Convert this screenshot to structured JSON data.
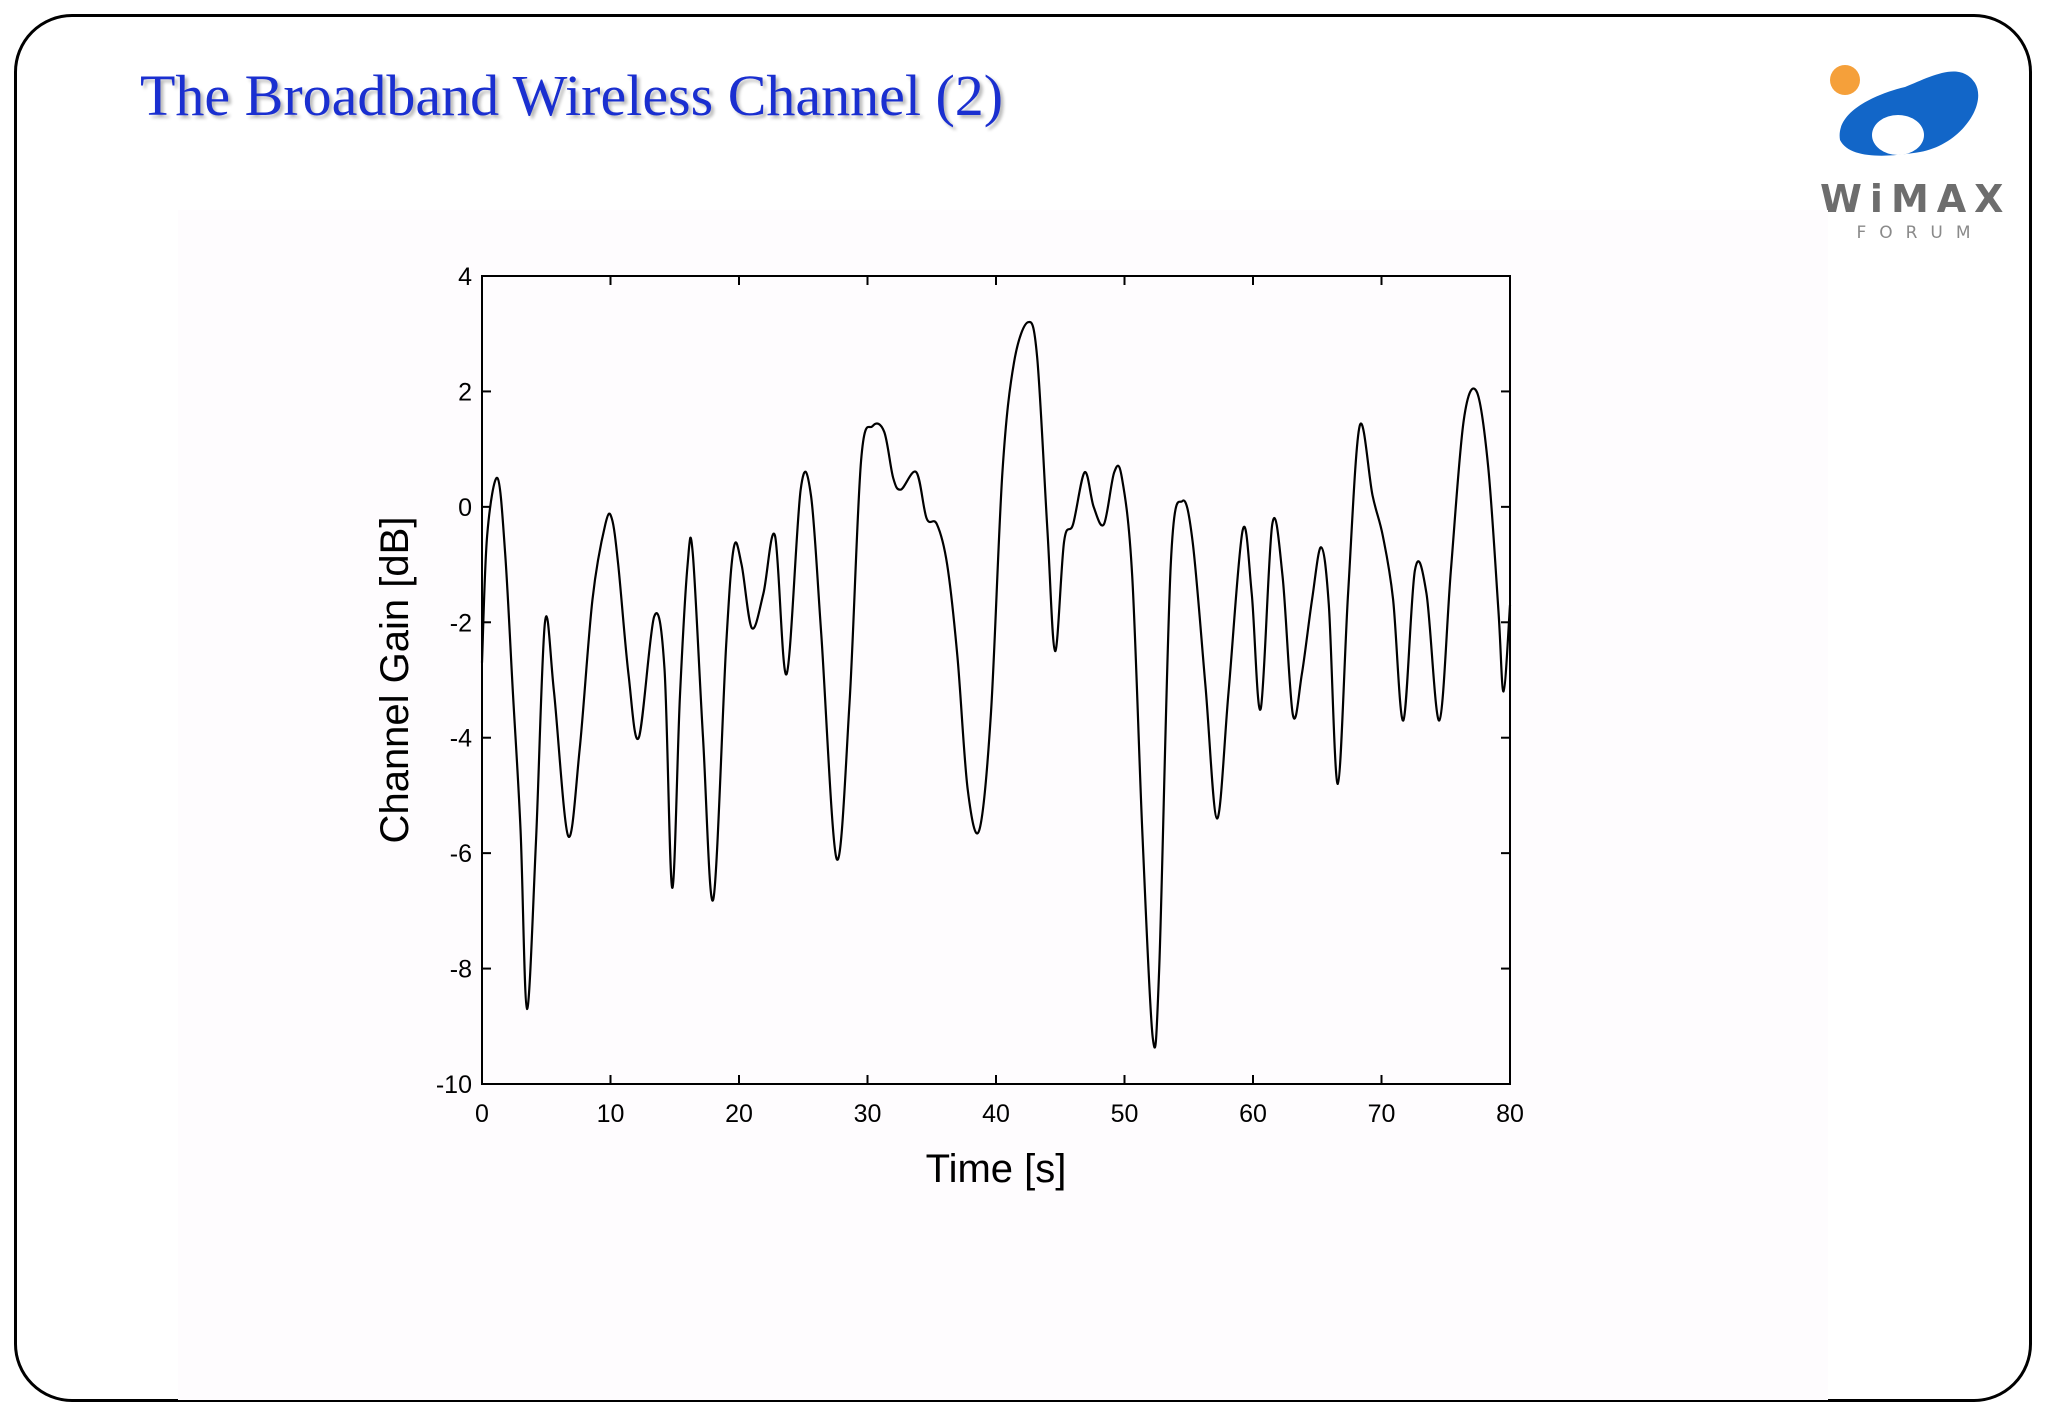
{
  "slide": {
    "title": "The Broadband Wireless Channel (2)"
  },
  "logo": {
    "word": "WiMAX",
    "sub": "FORUM",
    "colors": {
      "orange": "#f5a03a",
      "blue": "#1266c8",
      "gray": "#6d6d6d"
    }
  },
  "colors": {
    "title": "#1a2fd0",
    "line": "#000000",
    "frame": "#000000"
  },
  "chart_data": {
    "type": "line",
    "title": "",
    "xlabel": "Time [s]",
    "ylabel": "Channel Gain [dB]",
    "xlim": [
      0,
      80
    ],
    "ylim": [
      -10,
      4
    ],
    "xticks": [
      0,
      10,
      20,
      30,
      40,
      50,
      60,
      70,
      80
    ],
    "yticks": [
      -10,
      -8,
      -6,
      -4,
      -2,
      0,
      2,
      4
    ],
    "grid": false,
    "legend": "none",
    "series": [
      {
        "x": [
          0,
          0.4,
          1.2,
          1.8,
          2.4,
          3.0,
          3.5,
          4.2,
          4.9,
          5.6,
          6.7,
          7.6,
          8.6,
          9.6,
          10.1,
          10.6,
          11.4,
          12.2,
          13.4,
          14.2,
          14.8,
          15.4,
          16.0,
          16.4,
          17.2,
          18.0,
          19.0,
          19.6,
          20.2,
          21.0,
          21.9,
          22.8,
          23.7,
          24.8,
          25.6,
          26.4,
          27.6,
          28.6,
          29.5,
          30.4,
          31.3,
          32.0,
          32.6,
          33.8,
          34.6,
          35.4,
          36.2,
          37.0,
          37.8,
          38.7,
          39.6,
          40.5,
          41.4,
          42.5,
          43.2,
          44.0,
          44.6,
          45.3,
          46.0,
          46.9,
          47.6,
          48.4,
          49.2,
          49.8,
          50.6,
          51.4,
          52.2,
          52.7,
          53.6,
          54.5,
          55.3,
          56.3,
          57.2,
          58.1,
          59.2,
          59.9,
          60.6,
          61.5,
          62.3,
          63.1,
          63.8,
          64.6,
          65.3,
          65.9,
          66.6,
          67.4,
          68.3,
          69.3,
          70.1,
          70.9,
          71.7,
          72.6,
          73.5,
          74.5,
          75.4,
          76.4,
          77.4,
          78.3,
          79.1,
          79.5,
          80.0
        ],
        "y": [
          -2.7,
          -0.5,
          0.5,
          -0.8,
          -3.2,
          -5.6,
          -8.7,
          -5.8,
          -2.0,
          -3.2,
          -5.7,
          -4.2,
          -1.6,
          -0.3,
          -0.2,
          -1.0,
          -2.9,
          -4.0,
          -1.9,
          -2.8,
          -6.6,
          -3.3,
          -1.0,
          -0.8,
          -4.0,
          -6.8,
          -2.4,
          -0.7,
          -1.0,
          -2.1,
          -1.5,
          -0.5,
          -2.9,
          0.3,
          0.2,
          -2.2,
          -6.1,
          -3.4,
          0.8,
          1.4,
          1.3,
          0.5,
          0.3,
          0.6,
          -0.2,
          -0.3,
          -1.0,
          -2.6,
          -4.9,
          -5.6,
          -3.6,
          0.6,
          2.5,
          3.2,
          2.6,
          -0.4,
          -2.5,
          -0.6,
          -0.3,
          0.6,
          0.0,
          -0.3,
          0.6,
          0.5,
          -1.2,
          -5.7,
          -9.2,
          -8.0,
          -1.0,
          0.1,
          -0.6,
          -3.1,
          -5.4,
          -3.2,
          -0.4,
          -1.5,
          -3.5,
          -0.3,
          -1.2,
          -3.6,
          -2.9,
          -1.6,
          -0.7,
          -1.7,
          -4.8,
          -1.5,
          1.4,
          0.2,
          -0.5,
          -1.6,
          -3.7,
          -1.1,
          -1.5,
          -3.7,
          -1.1,
          1.5,
          2.0,
          0.7,
          -1.8,
          -3.2,
          -1.7
        ]
      }
    ]
  }
}
